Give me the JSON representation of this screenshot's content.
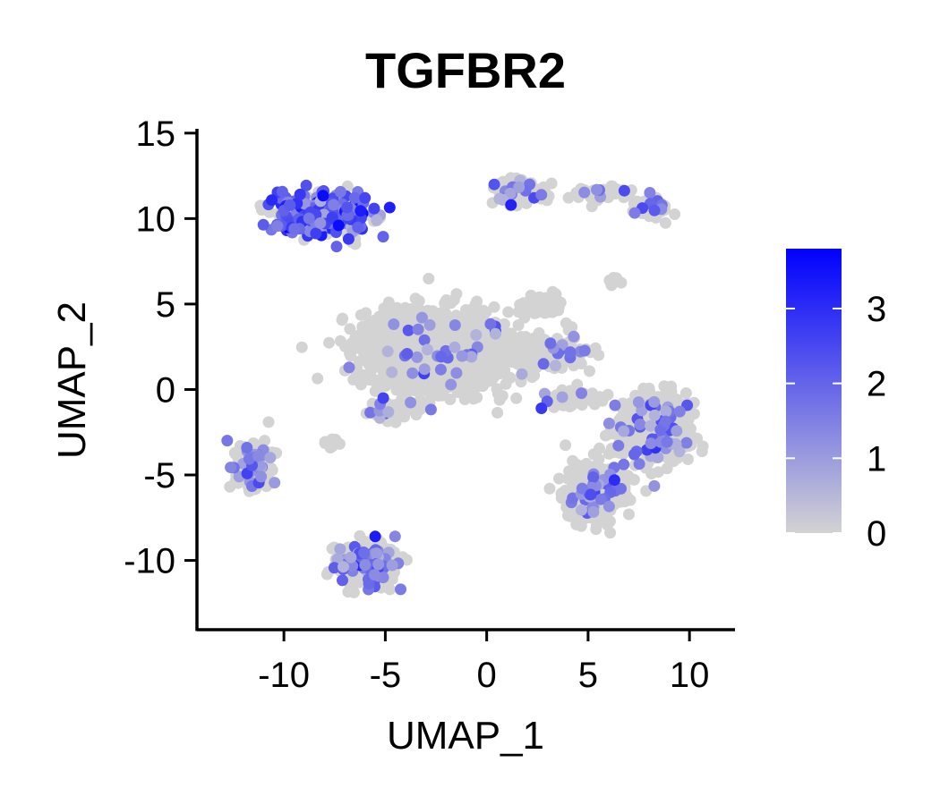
{
  "chart_data": {
    "type": "scatter",
    "title": "TGFBR2",
    "xlabel": "UMAP_1",
    "ylabel": "UMAP_2",
    "xlim": [
      -14.2,
      12.2
    ],
    "ylim": [
      -14,
      15.2
    ],
    "xticks": [
      -10,
      -5,
      0,
      5,
      10
    ],
    "yticks": [
      -10,
      -5,
      0,
      5,
      10,
      15
    ],
    "xtick_labels": [
      "-10",
      "-5",
      "0",
      "5",
      "10"
    ],
    "ytick_labels": [
      "-10",
      "-5",
      "0",
      "5",
      "10",
      "15"
    ],
    "grid": false,
    "legend": {
      "type": "colorbar",
      "placement": "right",
      "min": 0,
      "max": 3.8,
      "ticks": [
        0,
        1,
        2,
        3
      ],
      "tick_labels": [
        "0",
        "1",
        "2",
        "3"
      ],
      "color_low": "#d3d3d3",
      "color_high": "#0000ff"
    },
    "clusters": [
      {
        "cx": -2.5,
        "cy": 2.3,
        "sx": 3.2,
        "sy": 2.0,
        "n": 1500,
        "high_frac": 0.02,
        "mean_expr": 1.5
      },
      {
        "cx": 2.8,
        "cy": 4.9,
        "sx": 0.8,
        "sy": 0.5,
        "n": 120,
        "high_frac": 0.0,
        "mean_expr": 0.0
      },
      {
        "cx": 3.2,
        "cy": 2.2,
        "sx": 1.5,
        "sy": 0.8,
        "n": 150,
        "high_frac": 0.04,
        "mean_expr": 1.3
      },
      {
        "cx": 4.2,
        "cy": -0.5,
        "sx": 1.3,
        "sy": 0.4,
        "n": 80,
        "high_frac": 0.03,
        "mean_expr": 1.3
      },
      {
        "cx": -4.6,
        "cy": -1.2,
        "sx": 1.4,
        "sy": 0.6,
        "n": 70,
        "high_frac": 0.06,
        "mean_expr": 1.5
      },
      {
        "cx": -7.7,
        "cy": -3.2,
        "sx": 0.4,
        "sy": 0.3,
        "n": 15,
        "high_frac": 0.0,
        "mean_expr": 0.0
      },
      {
        "cx": -8.1,
        "cy": 10.2,
        "sx": 2.0,
        "sy": 1.1,
        "n": 420,
        "high_frac": 0.55,
        "mean_expr": 2.1
      },
      {
        "cx": -11.6,
        "cy": -4.5,
        "sx": 0.8,
        "sy": 1.1,
        "n": 150,
        "high_frac": 0.25,
        "mean_expr": 1.4
      },
      {
        "cx": -5.9,
        "cy": -10.2,
        "sx": 1.3,
        "sy": 1.2,
        "n": 260,
        "high_frac": 0.3,
        "mean_expr": 1.6
      },
      {
        "cx": 1.7,
        "cy": 11.6,
        "sx": 1.1,
        "sy": 0.6,
        "n": 160,
        "high_frac": 0.1,
        "mean_expr": 1.4
      },
      {
        "cx": 5.6,
        "cy": 11.5,
        "sx": 1.3,
        "sy": 0.3,
        "n": 60,
        "high_frac": 0.05,
        "mean_expr": 1.3
      },
      {
        "cx": 8.1,
        "cy": 10.7,
        "sx": 0.7,
        "sy": 0.6,
        "n": 60,
        "high_frac": 0.15,
        "mean_expr": 1.3
      },
      {
        "cx": 8.2,
        "cy": -2.3,
        "sx": 1.6,
        "sy": 1.8,
        "n": 500,
        "high_frac": 0.09,
        "mean_expr": 1.5
      },
      {
        "cx": 5.3,
        "cy": -6.0,
        "sx": 1.3,
        "sy": 1.4,
        "n": 350,
        "high_frac": 0.09,
        "mean_expr": 1.5
      },
      {
        "cx": 6.4,
        "cy": 6.4,
        "sx": 0.3,
        "sy": 0.3,
        "n": 8,
        "high_frac": 0.0,
        "mean_expr": 0.0
      }
    ],
    "highlight_points": [
      {
        "x": -7.3,
        "y": 9.6,
        "expr": 3.6
      },
      {
        "x": -5.5,
        "y": -8.6,
        "expr": 3.3
      },
      {
        "x": 6.3,
        "y": -5.3,
        "expr": 3.0
      },
      {
        "x": 2.7,
        "y": -1.1,
        "expr": 2.8
      },
      {
        "x": -5.1,
        "y": -0.5,
        "expr": 2.6
      },
      {
        "x": 1.2,
        "y": 10.8,
        "expr": 3.2
      }
    ]
  }
}
